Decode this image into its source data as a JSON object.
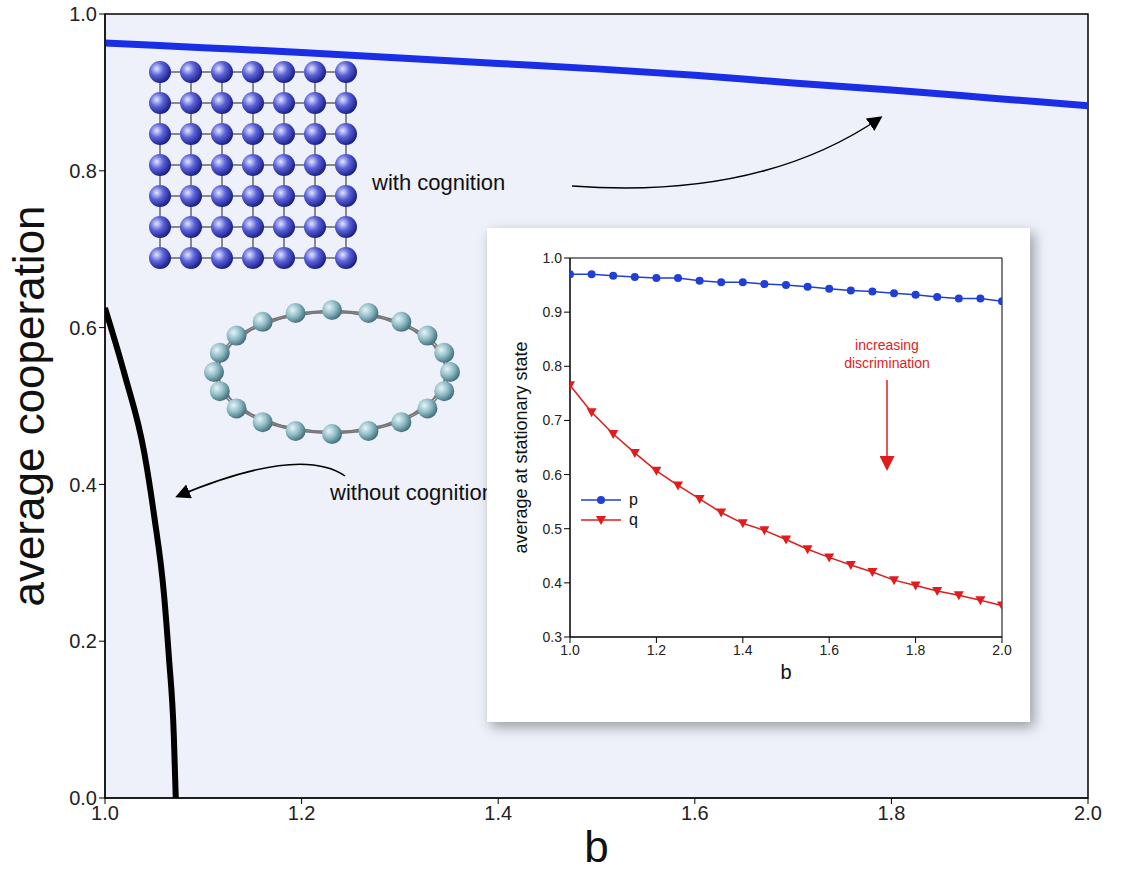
{
  "chart_data": [
    {
      "type": "line",
      "x_label": "b",
      "y_label": "average cooperation",
      "xlim": [
        1.0,
        2.0
      ],
      "ylim": [
        0.0,
        1.0
      ],
      "xticks": [
        {
          "value": 1.0,
          "label": "1.0"
        },
        1.2,
        1.4,
        1.6,
        1.8,
        {
          "value": 2.0,
          "label": "2.0"
        }
      ],
      "yticks": [
        {
          "value": 0.0,
          "label": "0.0"
        },
        0.2,
        0.4,
        0.6,
        0.8,
        {
          "value": 1.0,
          "label": "1.0"
        }
      ],
      "series": [
        {
          "name": "with cognition",
          "color": "#1a2ee6",
          "x": [
            1.0,
            1.1,
            1.2,
            1.3,
            1.4,
            1.5,
            1.6,
            1.7,
            1.8,
            1.9,
            2.0
          ],
          "values": [
            0.963,
            0.957,
            0.951,
            0.944,
            0.937,
            0.93,
            0.922,
            0.912,
            0.903,
            0.893,
            0.883
          ]
        },
        {
          "name": "without cognition",
          "color": "#000000",
          "x": [
            1.0,
            1.02,
            1.04,
            1.05,
            1.06,
            1.065,
            1.07,
            1.072
          ],
          "values": [
            0.625,
            0.54,
            0.44,
            0.36,
            0.26,
            0.18,
            0.08,
            0.0
          ]
        }
      ]
    },
    {
      "type": "line",
      "x_label": "b",
      "y_label": "average at stationary state",
      "xlim": [
        1.0,
        2.0
      ],
      "ylim": [
        0.3,
        1.0
      ],
      "xticks": [
        {
          "value": 1.0,
          "label": "1.0"
        },
        1.2,
        1.4,
        1.6,
        1.8,
        {
          "value": 2.0,
          "label": "2.0"
        }
      ],
      "yticks": [
        0.3,
        0.4,
        0.5,
        0.6,
        0.7,
        0.8,
        0.9,
        {
          "value": 1.0,
          "label": "1.0"
        }
      ],
      "legend": "left",
      "x": [
        1.0,
        1.05,
        1.1,
        1.15,
        1.2,
        1.25,
        1.3,
        1.35,
        1.4,
        1.45,
        1.5,
        1.55,
        1.6,
        1.65,
        1.7,
        1.75,
        1.8,
        1.85,
        1.9,
        1.95,
        2.0
      ],
      "series": [
        {
          "name": "p",
          "color": "#1f3fd6",
          "marker": "circle",
          "values": [
            0.97,
            0.97,
            0.967,
            0.965,
            0.963,
            0.963,
            0.958,
            0.955,
            0.955,
            0.952,
            0.95,
            0.947,
            0.943,
            0.94,
            0.938,
            0.935,
            0.932,
            0.928,
            0.925,
            0.925,
            0.92
          ]
        },
        {
          "name": "q",
          "color": "#e01c1c",
          "marker": "triangle_down",
          "values": [
            0.765,
            0.715,
            0.675,
            0.64,
            0.607,
            0.58,
            0.555,
            0.53,
            0.51,
            0.497,
            0.48,
            0.462,
            0.447,
            0.433,
            0.42,
            0.405,
            0.395,
            0.385,
            0.377,
            0.368,
            0.358
          ]
        }
      ],
      "annotations": [
        {
          "text": "increasing discrimination",
          "color": "#e01c1c"
        }
      ]
    }
  ]
}
